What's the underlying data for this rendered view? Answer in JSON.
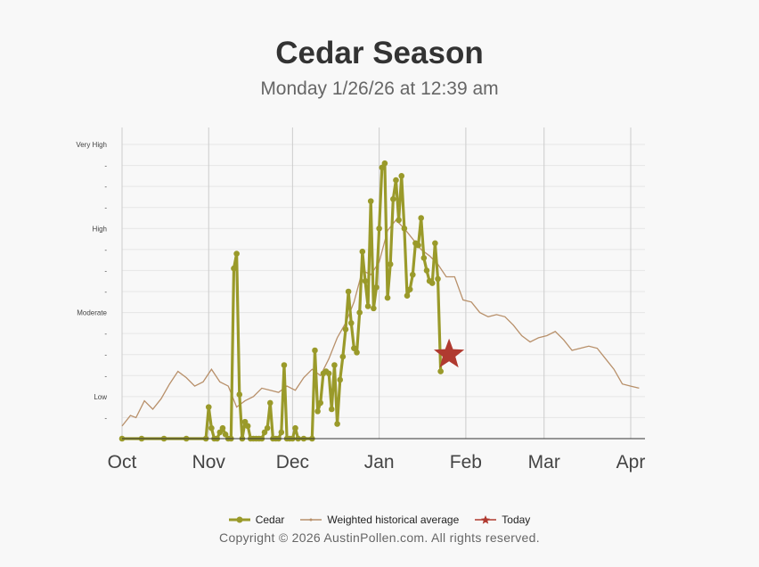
{
  "title": "Cedar Season",
  "subtitle": "Monday 1/26/26 at 12:39 am",
  "copyright": "Copyright © 2026 AustinPollen.com.  All rights reserved.",
  "legend": {
    "cedar": "Cedar",
    "historical": "Weighted historical average",
    "today": "Today"
  },
  "colors": {
    "cedar": "#9a9a2a",
    "historical": "#b8906a",
    "today": "#b03a30",
    "grid": "#e6e6e6",
    "month_line": "#cccccc"
  },
  "chart_data": {
    "type": "line",
    "title": "Cedar Season",
    "subtitle": "Monday 1/26/26 at 12:39 am",
    "x_type": "date",
    "x_range": [
      "2025-10-01",
      "2026-04-01"
    ],
    "x_ticks": [
      "Oct",
      "Nov",
      "Dec",
      "Jan",
      "Feb",
      "Mar",
      "Apr"
    ],
    "x_tick_dates": [
      "2025-10-01",
      "2025-11-01",
      "2025-12-01",
      "2026-01-01",
      "2026-02-01",
      "2026-03-01",
      "2026-04-01"
    ],
    "y_range": [
      0,
      14
    ],
    "y_ticks": [
      {
        "value": 1,
        "label": "-"
      },
      {
        "value": 2,
        "label": "Low"
      },
      {
        "value": 3,
        "label": "-"
      },
      {
        "value": 4,
        "label": "-"
      },
      {
        "value": 5,
        "label": "-"
      },
      {
        "value": 6,
        "label": "Moderate"
      },
      {
        "value": 7,
        "label": "-"
      },
      {
        "value": 8,
        "label": "-"
      },
      {
        "value": 9,
        "label": "-"
      },
      {
        "value": 10,
        "label": "High"
      },
      {
        "value": 11,
        "label": "-"
      },
      {
        "value": 12,
        "label": "-"
      },
      {
        "value": 13,
        "label": "-"
      },
      {
        "value": 14,
        "label": "Very High"
      }
    ],
    "grid": true,
    "legend_position": "bottom",
    "series": [
      {
        "name": "Cedar",
        "type": "line-markers",
        "points": [
          [
            "2025-10-01",
            0
          ],
          [
            "2025-10-08",
            0
          ],
          [
            "2025-10-16",
            0
          ],
          [
            "2025-10-24",
            0
          ],
          [
            "2025-10-31",
            0
          ],
          [
            "2025-11-01",
            1.5
          ],
          [
            "2025-11-02",
            0.5
          ],
          [
            "2025-11-03",
            0
          ],
          [
            "2025-11-04",
            0
          ],
          [
            "2025-11-05",
            0.3
          ],
          [
            "2025-11-06",
            0.5
          ],
          [
            "2025-11-07",
            0.2
          ],
          [
            "2025-11-08",
            0
          ],
          [
            "2025-11-09",
            0
          ],
          [
            "2025-11-10",
            8.1
          ],
          [
            "2025-11-11",
            8.8
          ],
          [
            "2025-11-12",
            2.1
          ],
          [
            "2025-11-13",
            0
          ],
          [
            "2025-11-14",
            0.8
          ],
          [
            "2025-11-15",
            0.6
          ],
          [
            "2025-11-16",
            0
          ],
          [
            "2025-11-17",
            0
          ],
          [
            "2025-11-18",
            0
          ],
          [
            "2025-11-19",
            0
          ],
          [
            "2025-11-20",
            0
          ],
          [
            "2025-11-21",
            0.3
          ],
          [
            "2025-11-22",
            0.5
          ],
          [
            "2025-11-23",
            1.7
          ],
          [
            "2025-11-24",
            0
          ],
          [
            "2025-11-25",
            0
          ],
          [
            "2025-11-26",
            0
          ],
          [
            "2025-11-27",
            0.3
          ],
          [
            "2025-11-28",
            3.5
          ],
          [
            "2025-11-29",
            0
          ],
          [
            "2025-11-30",
            0
          ],
          [
            "2025-12-01",
            0
          ],
          [
            "2025-12-02",
            0.5
          ],
          [
            "2025-12-03",
            0
          ],
          [
            "2025-12-05",
            0
          ],
          [
            "2025-12-08",
            0
          ],
          [
            "2025-12-09",
            4.2
          ],
          [
            "2025-12-10",
            1.3
          ],
          [
            "2025-12-11",
            1.7
          ],
          [
            "2025-12-12",
            3.1
          ],
          [
            "2025-12-13",
            3.2
          ],
          [
            "2025-12-14",
            3.1
          ],
          [
            "2025-12-15",
            1.4
          ],
          [
            "2025-12-16",
            3.5
          ],
          [
            "2025-12-17",
            0.7
          ],
          [
            "2025-12-18",
            2.8
          ],
          [
            "2025-12-19",
            3.9
          ],
          [
            "2025-12-20",
            5.2
          ],
          [
            "2025-12-21",
            7.0
          ],
          [
            "2025-12-22",
            5.5
          ],
          [
            "2025-12-23",
            4.3
          ],
          [
            "2025-12-24",
            4.1
          ],
          [
            "2025-12-25",
            6.0
          ],
          [
            "2025-12-26",
            8.9
          ],
          [
            "2025-12-27",
            7.5
          ],
          [
            "2025-12-28",
            6.3
          ],
          [
            "2025-12-29",
            11.3
          ],
          [
            "2025-12-30",
            6.2
          ],
          [
            "2025-12-31",
            7.2
          ],
          [
            "2026-01-01",
            10.0
          ],
          [
            "2026-01-02",
            12.9
          ],
          [
            "2026-01-03",
            13.1
          ],
          [
            "2026-01-04",
            6.7
          ],
          [
            "2026-01-05",
            8.3
          ],
          [
            "2026-01-06",
            11.4
          ],
          [
            "2026-01-07",
            12.3
          ],
          [
            "2026-01-08",
            10.4
          ],
          [
            "2026-01-09",
            12.5
          ],
          [
            "2026-01-10",
            10.0
          ],
          [
            "2026-01-11",
            6.8
          ],
          [
            "2026-01-12",
            7.1
          ],
          [
            "2026-01-13",
            7.8
          ],
          [
            "2026-01-14",
            9.3
          ],
          [
            "2026-01-15",
            9.2
          ],
          [
            "2026-01-16",
            10.5
          ],
          [
            "2026-01-17",
            8.6
          ],
          [
            "2026-01-18",
            8.0
          ],
          [
            "2026-01-19",
            7.5
          ],
          [
            "2026-01-20",
            7.4
          ],
          [
            "2026-01-21",
            9.3
          ],
          [
            "2026-01-22",
            7.6
          ],
          [
            "2026-01-23",
            3.2
          ]
        ]
      },
      {
        "name": "Weighted historical average",
        "type": "line",
        "points": [
          [
            "2025-10-01",
            0.6
          ],
          [
            "2025-10-04",
            1.1
          ],
          [
            "2025-10-06",
            1.0
          ],
          [
            "2025-10-09",
            1.8
          ],
          [
            "2025-10-12",
            1.4
          ],
          [
            "2025-10-15",
            1.9
          ],
          [
            "2025-10-18",
            2.6
          ],
          [
            "2025-10-21",
            3.2
          ],
          [
            "2025-10-24",
            2.9
          ],
          [
            "2025-10-27",
            2.5
          ],
          [
            "2025-10-30",
            2.7
          ],
          [
            "2025-11-02",
            3.3
          ],
          [
            "2025-11-05",
            2.7
          ],
          [
            "2025-11-08",
            2.5
          ],
          [
            "2025-11-11",
            1.5
          ],
          [
            "2025-11-14",
            1.8
          ],
          [
            "2025-11-17",
            2.0
          ],
          [
            "2025-11-20",
            2.4
          ],
          [
            "2025-11-23",
            2.3
          ],
          [
            "2025-11-26",
            2.2
          ],
          [
            "2025-11-29",
            2.5
          ],
          [
            "2025-12-02",
            2.3
          ],
          [
            "2025-12-05",
            2.9
          ],
          [
            "2025-12-08",
            3.3
          ],
          [
            "2025-12-11",
            3.0
          ],
          [
            "2025-12-14",
            3.8
          ],
          [
            "2025-12-17",
            4.8
          ],
          [
            "2025-12-20",
            5.5
          ],
          [
            "2025-12-23",
            6.5
          ],
          [
            "2025-12-26",
            8.0
          ],
          [
            "2025-12-29",
            7.8
          ],
          [
            "2026-01-01",
            8.4
          ],
          [
            "2026-01-04",
            9.9
          ],
          [
            "2026-01-07",
            10.4
          ],
          [
            "2026-01-10",
            10.0
          ],
          [
            "2026-01-13",
            9.5
          ],
          [
            "2026-01-16",
            9.0
          ],
          [
            "2026-01-19",
            8.7
          ],
          [
            "2026-01-22",
            8.3
          ],
          [
            "2026-01-25",
            7.7
          ],
          [
            "2026-01-28",
            7.7
          ],
          [
            "2026-01-31",
            6.6
          ],
          [
            "2026-02-03",
            6.5
          ],
          [
            "2026-02-06",
            6.0
          ],
          [
            "2026-02-09",
            5.8
          ],
          [
            "2026-02-12",
            5.9
          ],
          [
            "2026-02-15",
            5.8
          ],
          [
            "2026-02-18",
            5.4
          ],
          [
            "2026-02-21",
            4.9
          ],
          [
            "2026-02-24",
            4.6
          ],
          [
            "2026-02-27",
            4.8
          ],
          [
            "2026-03-02",
            4.9
          ],
          [
            "2026-03-05",
            5.1
          ],
          [
            "2026-03-08",
            4.7
          ],
          [
            "2026-03-11",
            4.2
          ],
          [
            "2026-03-14",
            4.3
          ],
          [
            "2026-03-17",
            4.4
          ],
          [
            "2026-03-20",
            4.3
          ],
          [
            "2026-03-23",
            3.8
          ],
          [
            "2026-03-26",
            3.3
          ],
          [
            "2026-03-29",
            2.6
          ],
          [
            "2026-04-01",
            2.5
          ],
          [
            "2026-04-04",
            2.4
          ]
        ]
      },
      {
        "name": "Today",
        "type": "star",
        "points": [
          [
            "2026-01-26",
            4.0
          ]
        ]
      }
    ]
  }
}
